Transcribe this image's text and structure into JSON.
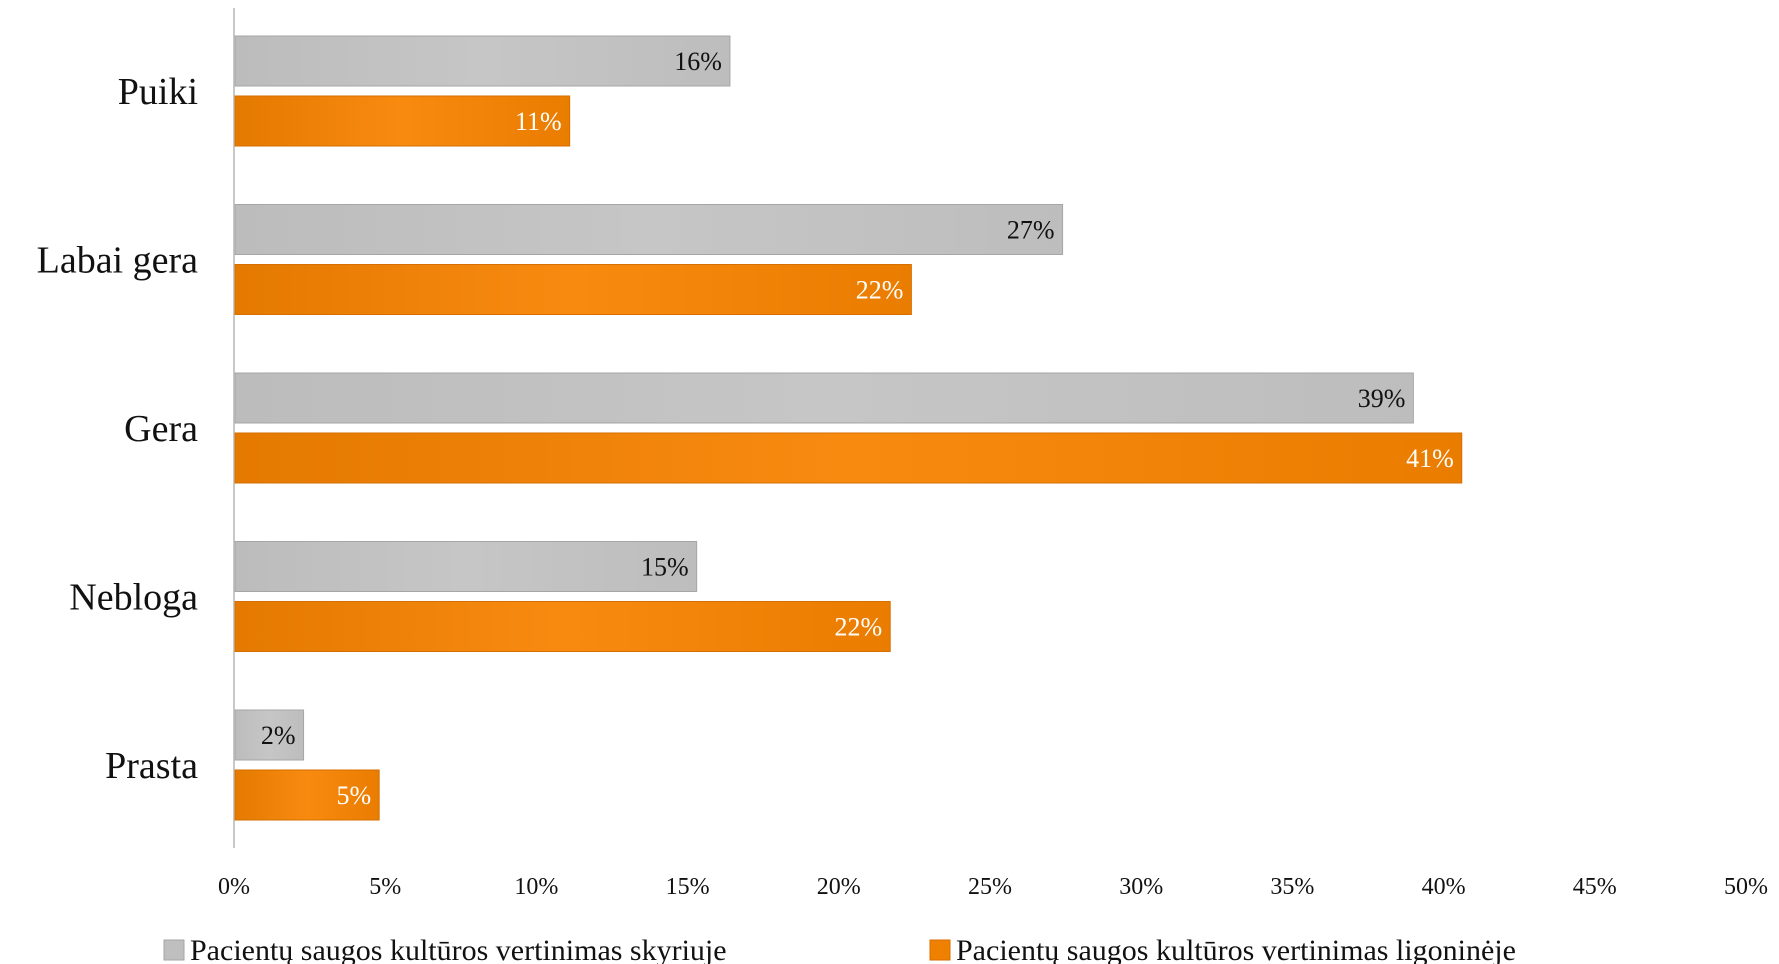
{
  "chart_data": {
    "type": "bar",
    "orientation": "horizontal",
    "categories": [
      "Puiki",
      "Labai gera",
      "Gera",
      "Nebloga",
      "Prasta"
    ],
    "series": [
      {
        "name": "Pacientų saugos kultūros vertinimas skyriuje",
        "color": "#bfbfbf",
        "values": [
          16.4,
          27.4,
          39.0,
          15.3,
          2.3
        ],
        "labels": [
          "16%",
          "27%",
          "39%",
          "15%",
          "2%"
        ],
        "label_color": "#111111"
      },
      {
        "name": "Pacientų saugos kultūros vertinimas ligoninėje",
        "color": "#f08000",
        "values": [
          11.1,
          22.4,
          40.6,
          21.7,
          4.8
        ],
        "labels": [
          "11%",
          "22%",
          "41%",
          "22%",
          "5%"
        ],
        "label_color": "#ffffff"
      }
    ],
    "xlim": [
      0,
      50
    ],
    "x_ticks": [
      0,
      5,
      10,
      15,
      20,
      25,
      30,
      35,
      40,
      45,
      50
    ],
    "x_tick_labels": [
      "0%",
      "5%",
      "10%",
      "15%",
      "20%",
      "25%",
      "30%",
      "35%",
      "40%",
      "45%",
      "50%"
    ],
    "title": "",
    "xlabel": "",
    "ylabel": "",
    "grid": false,
    "legend_position": "bottom"
  }
}
